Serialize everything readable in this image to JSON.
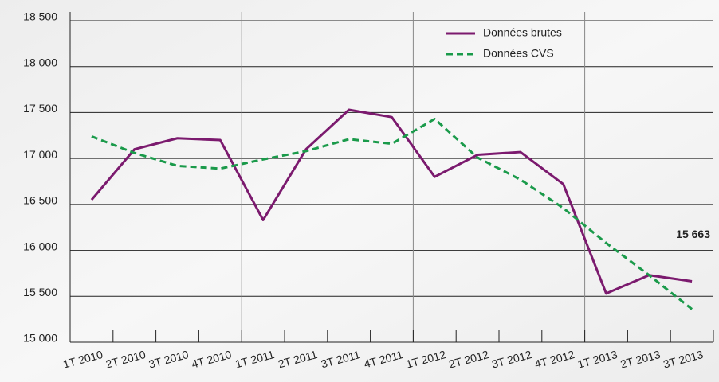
{
  "chart_data": {
    "type": "line",
    "categories": [
      "1T 2010",
      "2T 2010",
      "3T 2010",
      "4T 2010",
      "1T 2011",
      "2T 2011",
      "3T 2011",
      "4T 2011",
      "1T 2012",
      "2T 2012",
      "3T 2012",
      "4T 2012",
      "1T 2013",
      "2T 2013",
      "3T 2013"
    ],
    "series": [
      {
        "name": "Données brutes",
        "color": "#7b1a6e",
        "line_style": "solid",
        "values": [
          16550,
          17100,
          17220,
          17200,
          16330,
          17100,
          17530,
          17450,
          16800,
          17040,
          17070,
          16720,
          15530,
          15730,
          15663
        ]
      },
      {
        "name": "Données CVS",
        "color": "#1a9a4a",
        "line_style": "dashed",
        "values": [
          17240,
          17060,
          16920,
          16890,
          16990,
          17080,
          17210,
          17160,
          17430,
          17010,
          16770,
          16460,
          16080,
          15730,
          15360
        ]
      }
    ],
    "ylim": [
      15000,
      18500
    ],
    "yticks": [
      {
        "value": 15000,
        "label": "15 000"
      },
      {
        "value": 15500,
        "label": "15 500"
      },
      {
        "value": 16000,
        "label": "16 000"
      },
      {
        "value": 16500,
        "label": "16 500"
      },
      {
        "value": 17000,
        "label": "17 000"
      },
      {
        "value": 17500,
        "label": "17 500"
      },
      {
        "value": 18000,
        "label": "18 000"
      },
      {
        "value": 18500,
        "label": "18 500"
      }
    ],
    "grid": true,
    "legend": "top-right",
    "annotations": [
      {
        "text": "15 663",
        "series": 0,
        "index": 14
      }
    ]
  }
}
